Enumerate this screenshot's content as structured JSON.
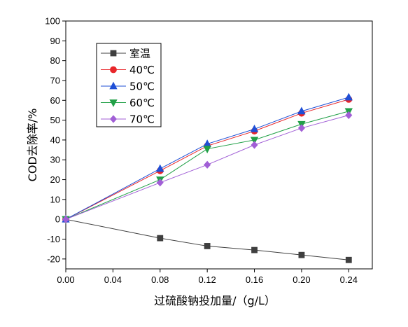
{
  "chart_data": {
    "type": "line",
    "xlabel": "过硫酸钠投加量/（g/L）",
    "ylabel": "COD去除率/%",
    "xlim": [
      0,
      0.26
    ],
    "ylim": [
      -25,
      100
    ],
    "x_ticks": [
      "0.00",
      "0.04",
      "0.08",
      "0.12",
      "0.16",
      "0.20",
      "0.24"
    ],
    "y_ticks": [
      "-20",
      "-10",
      "0",
      "10",
      "20",
      "30",
      "40",
      "50",
      "60",
      "70",
      "80",
      "90",
      "100"
    ],
    "x": [
      0,
      0.08,
      0.12,
      0.16,
      0.2,
      0.24
    ],
    "legend_position": "top-left",
    "grid": false,
    "series": [
      {
        "name": "室温",
        "marker": "square",
        "color": "#3f3f3f",
        "values": [
          0,
          -9.5,
          -13.5,
          -15.5,
          -18,
          -20.5
        ]
      },
      {
        "name": "40℃",
        "marker": "circle",
        "color": "#e8262a",
        "values": [
          0,
          24.5,
          37,
          44.5,
          53.5,
          60.5
        ]
      },
      {
        "name": "50℃",
        "marker": "triangle-up",
        "color": "#1f4fd6",
        "values": [
          0,
          25.5,
          38,
          45.5,
          54.5,
          61.5
        ]
      },
      {
        "name": "60℃",
        "marker": "triangle-down",
        "color": "#21a047",
        "values": [
          0,
          20,
          35.5,
          40,
          48,
          54.5
        ]
      },
      {
        "name": "70℃",
        "marker": "diamond",
        "color": "#a15fd6",
        "values": [
          0,
          18.5,
          27.5,
          37.5,
          46,
          52.5
        ]
      }
    ]
  }
}
